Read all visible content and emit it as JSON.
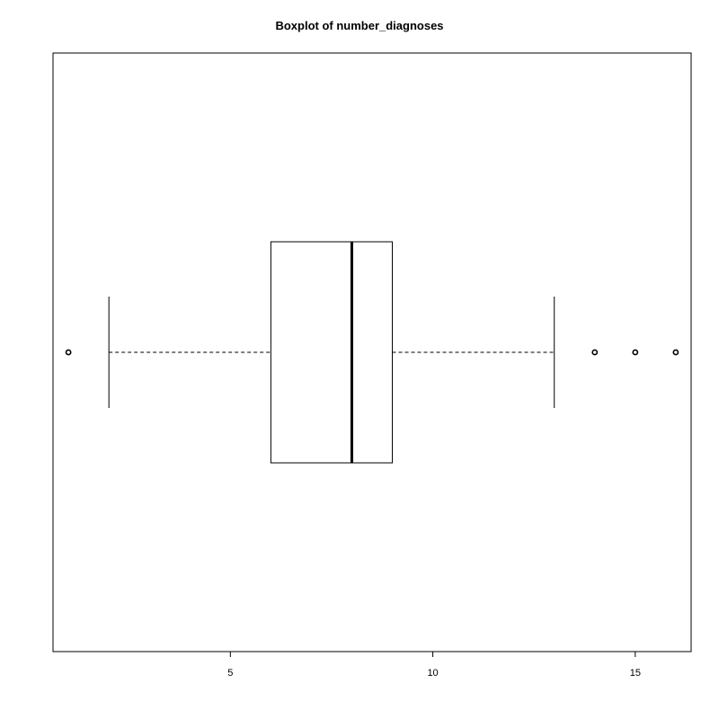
{
  "chart_data": {
    "type": "boxplot",
    "title": "Boxplot of number_diagnoses",
    "orientation": "horizontal",
    "xlabel": "",
    "ylabel": "",
    "xlim": [
      0.62,
      16.38
    ],
    "x_ticks": [
      5,
      10,
      15
    ],
    "x_tick_labels": [
      "5",
      "10",
      "15"
    ],
    "stats": {
      "whisker_low": 2,
      "q1": 6,
      "median": 8,
      "q3": 9,
      "whisker_high": 13
    },
    "outliers": [
      1,
      14,
      15,
      16
    ],
    "grid": false,
    "legend": "none",
    "colors": {
      "box_stroke": "#000000",
      "box_fill": "#ffffff",
      "median": "#000000",
      "whisker": "#000000",
      "outlier": "#000000"
    }
  }
}
